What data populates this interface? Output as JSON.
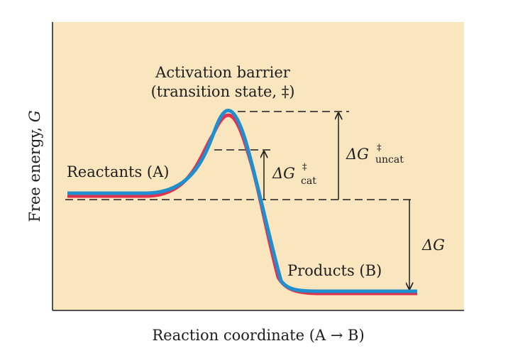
{
  "labels": {
    "activation_line1": "Activation barrier",
    "activation_line2": "(transition state, ‡)",
    "reactants": "Reactants (A)",
    "products": "Products (B)",
    "dg_uncat_base": "ΔG",
    "dg_uncat_sup": "‡",
    "dg_uncat_sub": "uncat",
    "dg_cat_base": "ΔG",
    "dg_cat_sup": "‡",
    "dg_cat_sub": "cat",
    "dg_base": "ΔG",
    "x_axis_main": "Reaction  coordinate  (A ",
    "x_axis_arrow": "→",
    "x_axis_end": " B)",
    "y_axis_main": "Free  energy, ",
    "y_axis_var": "G"
  },
  "colors": {
    "background": "#f9e6bf",
    "uncatalyzed_curve": "#1e8fcf",
    "catalyzed_curve": "#e0324f",
    "axis": "#1e1e1e"
  }
}
